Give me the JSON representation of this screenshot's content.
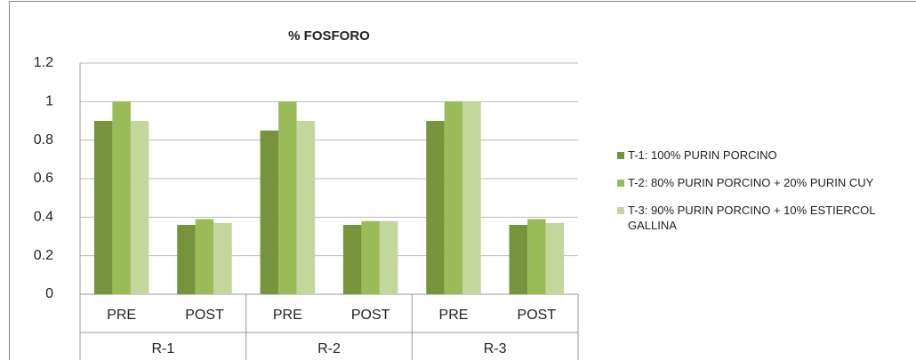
{
  "chart_data": {
    "type": "bar",
    "title": "% FOSFORO",
    "categories": [
      "PRE",
      "POST",
      "PRE",
      "POST",
      "PRE",
      "POST"
    ],
    "groups": [
      "R-1",
      "R-2",
      "R-3"
    ],
    "series": [
      {
        "name": "T-1: 100% PURIN PORCINO",
        "color": "#77933c",
        "values": [
          0.9,
          0.36,
          0.85,
          0.36,
          0.9,
          0.36
        ]
      },
      {
        "name": "T-2: 80% PURIN PORCINO + 20% PURIN CUY",
        "color": "#9bbb59",
        "values": [
          1.0,
          0.39,
          1.0,
          0.38,
          1.0,
          0.39
        ]
      },
      {
        "name": "T-3: 90% PURIN PORCINO + 10% ESTIERCOL GALLINA",
        "color": "#c3d69b",
        "values": [
          0.9,
          0.37,
          0.9,
          0.38,
          1.0,
          0.37
        ]
      }
    ],
    "ylim": [
      0,
      1.2
    ],
    "yticks": [
      0,
      0.2,
      0.4,
      0.6,
      0.8,
      1,
      1.2
    ],
    "grid": true,
    "legend": "right"
  }
}
